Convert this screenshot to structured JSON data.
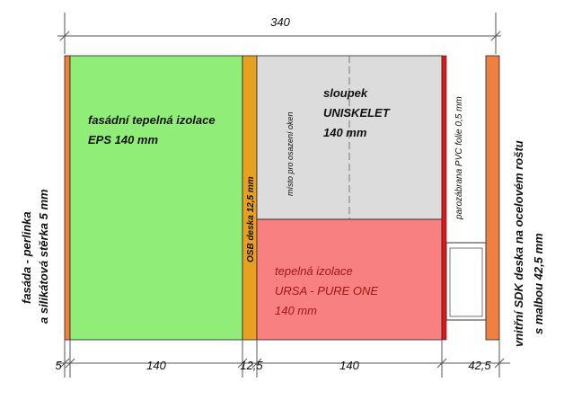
{
  "dimensions": {
    "total": "340",
    "facade": "5",
    "eps": "140",
    "osb": "12,5",
    "stud": "140",
    "sdk": "42,5"
  },
  "labels": {
    "facade_line1": "fasáda - perlinka",
    "facade_line2": "a silikátová stěrka 5 mm",
    "eps_line1": "fasádní tepelná izolace",
    "eps_line2": "EPS  140 mm",
    "osb": "OSB deska 12,5 mm",
    "opening": "místo pro osazení oken",
    "stud_line1": "sloupek",
    "stud_line2": "UNISKELET",
    "stud_line3": "140 mm",
    "ursa_line1": "tepelná izolace",
    "ursa_line2": "URSA  - PURE ONE",
    "ursa_line3": "140 mm",
    "vapor": "parozábrana   PVC folie 0,5 mm",
    "sdk_line1": "vnitřní SDK deska na ocelovém roštu",
    "sdk_line2": "s malbou  42,5 mm"
  },
  "colors": {
    "facade": "#f08040",
    "eps": "#90ee78",
    "osb": "#e8a020",
    "stud": "#dcdcdc",
    "ursa": "#f88080",
    "vapor": "#e01818",
    "sdk": "#f08040",
    "ursa_text": "#a01818"
  }
}
